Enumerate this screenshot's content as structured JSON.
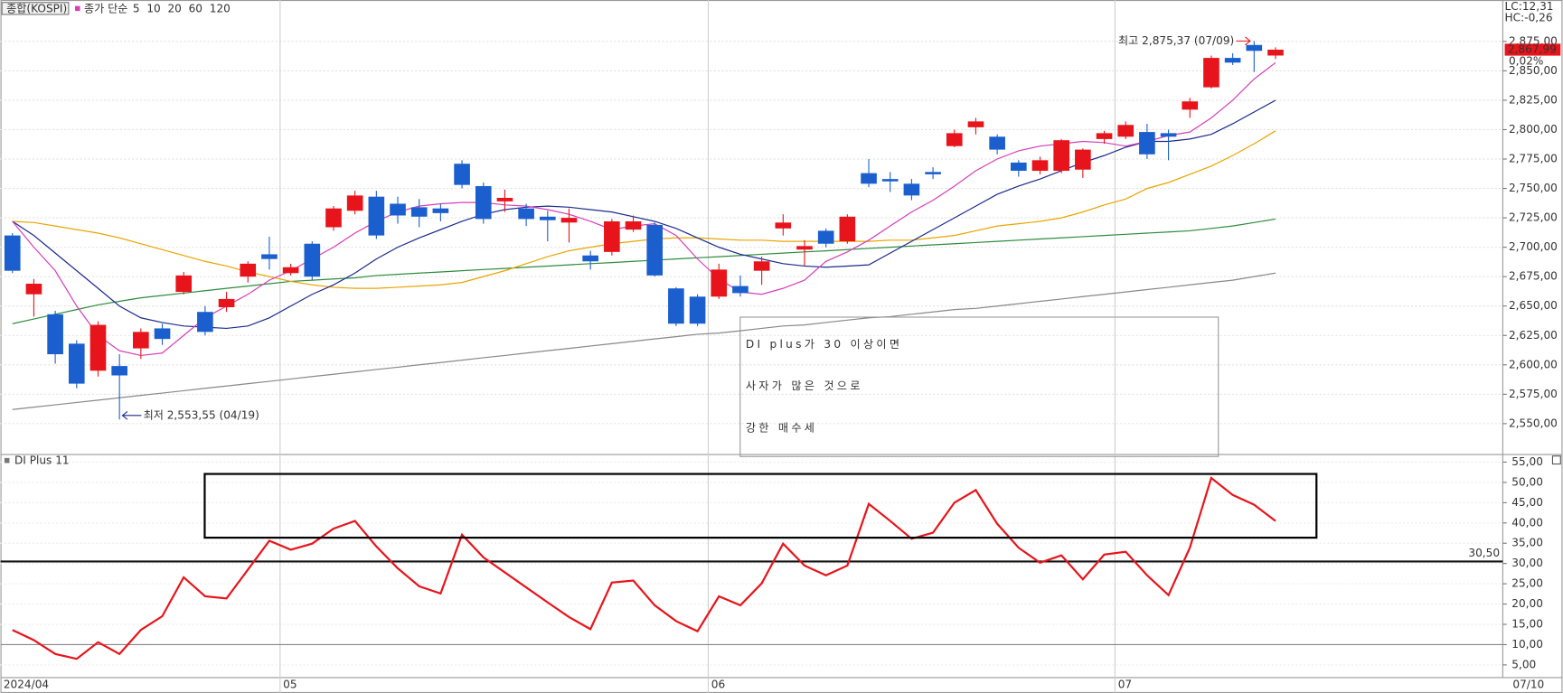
{
  "header": {
    "index_name": "종합(KOSPI)",
    "ma_label": "종가 단순"
  },
  "chart_data": [
    {
      "type": "candlestick",
      "categories": [
        "2024/04",
        null,
        null,
        null,
        null,
        null,
        null,
        null,
        null,
        null,
        null,
        null,
        null,
        "05",
        null,
        null,
        null,
        null,
        null,
        null,
        null,
        null,
        null,
        null,
        null,
        null,
        null,
        null,
        null,
        null,
        null,
        null,
        null,
        "06",
        null,
        null,
        null,
        null,
        null,
        null,
        null,
        null,
        null,
        null,
        null,
        null,
        null,
        null,
        null,
        null,
        null,
        null,
        "07",
        null,
        null,
        null,
        null,
        null,
        null,
        null
      ],
      "open": [
        2710,
        2660,
        2643,
        2618,
        2595,
        2599,
        2614,
        2631,
        2662,
        2645,
        2649,
        2675,
        2694,
        2678,
        2703,
        2717,
        2731,
        2743,
        2737,
        2734,
        2733,
        2771,
        2752,
        2739,
        2733,
        2726,
        2721,
        2693,
        2696,
        2715,
        2719,
        2665,
        2658,
        2658,
        2667,
        2680,
        2716,
        2698,
        2714,
        2705,
        2763,
        2758,
        2754,
        2764,
        2786,
        2802,
        2794,
        2772,
        2765,
        2765,
        2766,
        2792,
        2794,
        2798,
        2797,
        2817,
        2836,
        2861,
        2872,
        2863
      ],
      "high": [
        2712,
        2673,
        2646,
        2621,
        2637,
        2609,
        2631,
        2635,
        2679,
        2650,
        2662,
        2688,
        2709,
        2686,
        2705,
        2735,
        2748,
        2748,
        2743,
        2741,
        2737,
        2774,
        2755,
        2749,
        2737,
        2731,
        2733,
        2697,
        2724,
        2727,
        2721,
        2666,
        2660,
        2686,
        2676,
        2692,
        2728,
        2706,
        2716,
        2728,
        2775,
        2764,
        2758,
        2768,
        2800,
        2810,
        2796,
        2774,
        2777,
        2792,
        2784,
        2799,
        2807,
        2805,
        2800,
        2827,
        2863,
        2865,
        2875.37,
        2870
      ],
      "low": [
        2678,
        2641,
        2601,
        2580,
        2590,
        2553.55,
        2605,
        2617,
        2660,
        2625,
        2645,
        2670,
        2681,
        2676,
        2672,
        2714,
        2728,
        2707,
        2720,
        2717,
        2722,
        2750,
        2720,
        2730,
        2718,
        2705,
        2704,
        2681,
        2693,
        2713,
        2675,
        2633,
        2633,
        2656,
        2658,
        2668,
        2710,
        2684,
        2700,
        2703,
        2751,
        2747,
        2740,
        2758,
        2785,
        2796,
        2779,
        2760,
        2762,
        2763,
        2759,
        2788,
        2792,
        2775,
        2774,
        2810,
        2835,
        2855,
        2849,
        2860
      ],
      "close": [
        2680,
        2669,
        2609,
        2584,
        2634,
        2591,
        2628,
        2622,
        2676,
        2628,
        2656,
        2686,
        2690,
        2683,
        2675,
        2733,
        2744,
        2710,
        2727,
        2726,
        2729,
        2753,
        2724,
        2742,
        2724,
        2723,
        2725,
        2688,
        2722,
        2722,
        2676,
        2635,
        2635,
        2681,
        2661,
        2688,
        2721,
        2701,
        2703,
        2726,
        2754,
        2756,
        2744,
        2762,
        2797,
        2807,
        2783,
        2765,
        2774,
        2791,
        2783,
        2797,
        2804,
        2779,
        2794,
        2824,
        2861,
        2857,
        2867,
        2867.99
      ],
      "up_color": "#e8141b",
      "down_color": "#1b5fcf",
      "series": [
        {
          "name": "5",
          "color": "#d63fb8",
          "values": [
            2722,
            2700,
            2680,
            2650,
            2625,
            2612,
            2608,
            2610,
            2625,
            2640,
            2650,
            2660,
            2672,
            2680,
            2690,
            2700,
            2712,
            2722,
            2730,
            2735,
            2737,
            2738,
            2738,
            2736,
            2735,
            2732,
            2728,
            2722,
            2715,
            2718,
            2720,
            2710,
            2690,
            2673,
            2662,
            2660,
            2665,
            2672,
            2688,
            2696,
            2706,
            2718,
            2730,
            2740,
            2752,
            2765,
            2775,
            2782,
            2786,
            2788,
            2790,
            2789,
            2786,
            2790,
            2795,
            2798,
            2810,
            2825,
            2843,
            2857
          ]
        },
        {
          "name": "10",
          "color": "#1c2a8c",
          "values": [
            2722,
            2710,
            2695,
            2680,
            2665,
            2650,
            2640,
            2636,
            2633,
            2632,
            2631,
            2633,
            2640,
            2650,
            2660,
            2668,
            2678,
            2690,
            2700,
            2708,
            2715,
            2722,
            2728,
            2732,
            2734,
            2735,
            2734,
            2732,
            2730,
            2726,
            2722,
            2716,
            2708,
            2700,
            2694,
            2690,
            2686,
            2684,
            2683,
            2684,
            2685,
            2695,
            2705,
            2715,
            2725,
            2735,
            2745,
            2752,
            2758,
            2765,
            2772,
            2778,
            2785,
            2790,
            2790,
            2792,
            2796,
            2805,
            2815,
            2825
          ]
        },
        {
          "name": "20",
          "color": "#e8a500",
          "values": [
            2722,
            2721,
            2718,
            2715,
            2712,
            2708,
            2703,
            2698,
            2693,
            2688,
            2684,
            2679,
            2675,
            2671,
            2668,
            2666,
            2665,
            2665,
            2666,
            2667,
            2668,
            2670,
            2675,
            2680,
            2686,
            2692,
            2697,
            2700,
            2703,
            2705,
            2707,
            2708,
            2708,
            2707,
            2706,
            2706,
            2705,
            2705,
            2705,
            2705,
            2705,
            2706,
            2706,
            2708,
            2710,
            2714,
            2718,
            2720,
            2722,
            2725,
            2730,
            2736,
            2741,
            2750,
            2755,
            2762,
            2769,
            2778,
            2788,
            2799
          ]
        },
        {
          "name": "60",
          "color": "#2e8b3e",
          "values": [
            2635,
            2639,
            2643,
            2647,
            2651,
            2654,
            2657,
            2659,
            2661,
            2663,
            2665,
            2667,
            2669,
            2671,
            2672,
            2673,
            2674,
            2676,
            2677,
            2678,
            2679,
            2680,
            2681,
            2682,
            2683,
            2684,
            2685,
            2686,
            2687,
            2688,
            2689,
            2690,
            2691,
            2692,
            2693,
            2694,
            2695,
            2696,
            2697,
            2698,
            2699,
            2700,
            2701,
            2702,
            2703,
            2704,
            2705,
            2706,
            2707,
            2708,
            2709,
            2710,
            2711,
            2712,
            2713,
            2714,
            2716,
            2718,
            2721,
            2724
          ]
        },
        {
          "name": "120",
          "color": "#888888",
          "values": [
            2562,
            2564,
            2566,
            2568,
            2570,
            2572,
            2574,
            2576,
            2578,
            2580,
            2582,
            2584,
            2586,
            2588,
            2590,
            2592,
            2594,
            2596,
            2598,
            2600,
            2602,
            2604,
            2606,
            2608,
            2610,
            2612,
            2614,
            2616,
            2618,
            2620,
            2622,
            2624,
            2626,
            2627,
            2629,
            2631,
            2633,
            2634,
            2636,
            2638,
            2640,
            2641,
            2643,
            2645,
            2647,
            2648,
            2650,
            2652,
            2654,
            2656,
            2658,
            2660,
            2662,
            2664,
            2666,
            2668,
            2670,
            2672,
            2675,
            2678
          ]
        }
      ],
      "ylim": [
        2525,
        2906
      ],
      "yticks": [
        {
          "value": 2550,
          "label": "2,550,00"
        },
        {
          "value": 2575,
          "label": "2,575,00"
        },
        {
          "value": 2600,
          "label": "2,600,00"
        },
        {
          "value": 2625,
          "label": "2,625,00"
        },
        {
          "value": 2650,
          "label": "2,650,00"
        },
        {
          "value": 2675,
          "label": "2,675,00"
        },
        {
          "value": 2700,
          "label": "2,700,00"
        },
        {
          "value": 2725,
          "label": "2,725,00"
        },
        {
          "value": 2750,
          "label": "2,750,00"
        },
        {
          "value": 2775,
          "label": "2,775,00"
        },
        {
          "value": 2800,
          "label": "2,800,00"
        },
        {
          "value": 2825,
          "label": "2,825,00"
        },
        {
          "value": 2850,
          "label": "2,850,00"
        },
        {
          "value": 2875,
          "label": "2,875,00"
        }
      ],
      "grid": true,
      "high_label": "최고 2,875,37 (07/09)",
      "low_label": "최저 2,553,55 (04/19)",
      "last_price": {
        "value": 2867.99,
        "label": "2,867,99"
      },
      "change": "0,02%",
      "lc": "LC:12,31",
      "hc": "HC:-0,26",
      "note": [
        "DI plus가 30 이상이면",
        "사자가 많은 것으로",
        "강한 매수세"
      ],
      "x_end_label": "07/10"
    },
    {
      "type": "line",
      "title": "DI Plus 11",
      "series": [
        {
          "name": "DI Plus 11",
          "color": "#e8141b",
          "values": [
            13.6,
            11.1,
            7.7,
            6.5,
            10.6,
            7.7,
            13.6,
            17,
            26.6,
            21.9,
            21.4,
            28.5,
            35.6,
            33.4,
            34.9,
            38.6,
            40.5,
            34.2,
            28.8,
            24.4,
            22.6,
            37.1,
            31.5,
            27.8,
            24.1,
            20.4,
            16.8,
            13.8,
            25.3,
            25.8,
            19.7,
            15.8,
            13.3,
            21.9,
            19.7,
            25.1,
            34.9,
            29.5,
            27.1,
            29.5,
            44.7,
            40.5,
            36.1,
            37.6,
            45,
            48.1,
            39.8,
            33.9,
            30.2,
            32,
            26.1,
            32.2,
            32.9,
            27.1,
            22.2,
            33.9,
            51.1,
            46.9,
            44.5,
            40.5
          ]
        }
      ],
      "ylim": [
        2,
        56.5
      ],
      "yticks": [
        {
          "value": 5,
          "label": "5,00"
        },
        {
          "value": 10,
          "label": "10,00"
        },
        {
          "value": 15,
          "label": "15,00"
        },
        {
          "value": 20,
          "label": "20,00"
        },
        {
          "value": 25,
          "label": "25,00"
        },
        {
          "value": 30,
          "label": "30,00"
        },
        {
          "value": 35,
          "label": "35,00"
        },
        {
          "value": 40,
          "label": "40,00"
        },
        {
          "value": 45,
          "label": "45,00"
        },
        {
          "value": 50,
          "label": "50,00"
        },
        {
          "value": 55,
          "label": "55,00"
        }
      ],
      "ref_lines": [
        {
          "value": 30.5,
          "label": "30,50",
          "color": "#111111"
        },
        {
          "value": 10,
          "color": "#888888"
        }
      ]
    }
  ]
}
